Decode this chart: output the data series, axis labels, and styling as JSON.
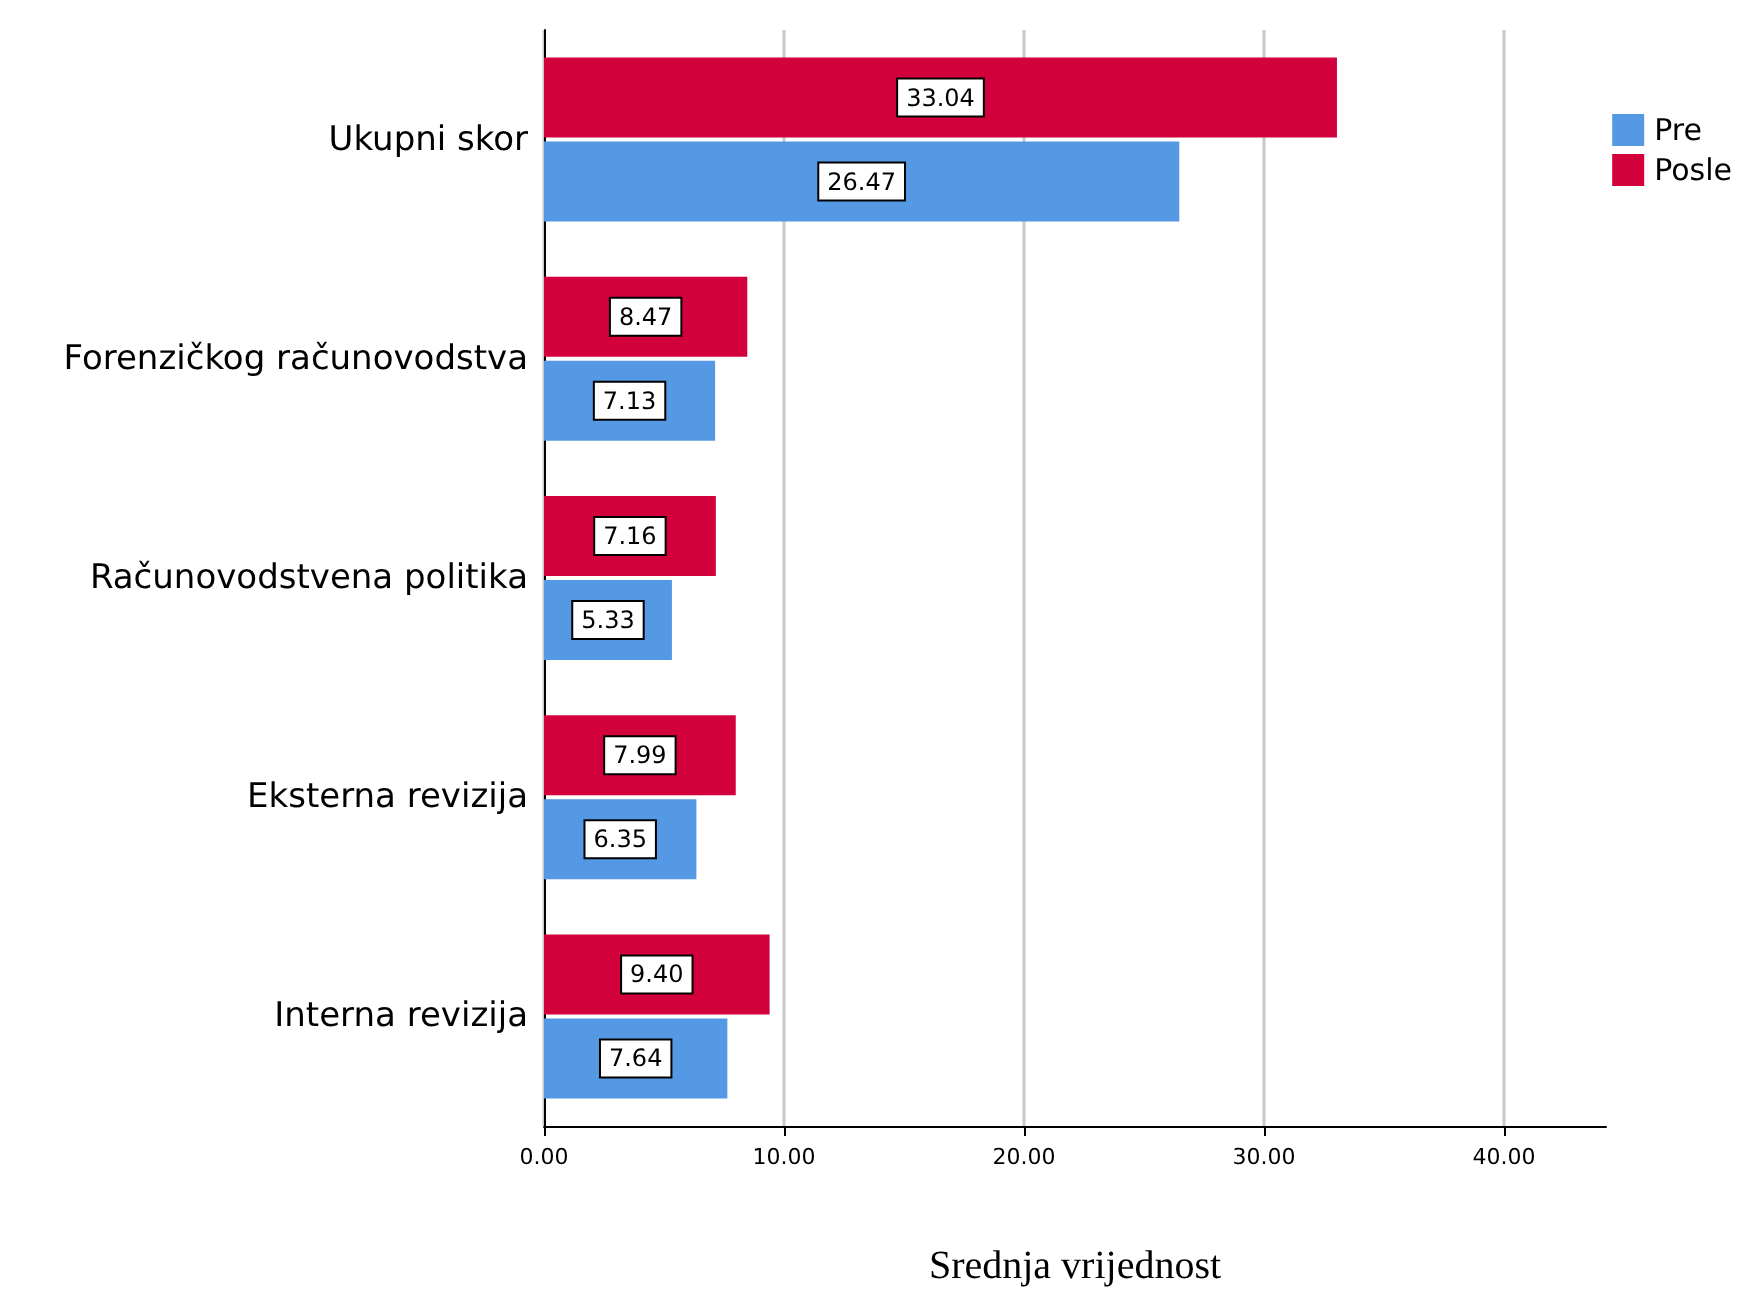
{
  "chart_data": {
    "type": "bar",
    "orientation": "horizontal",
    "xlabel": "Srednja vrijednost",
    "categories": [
      "Ukupni skor",
      "Forenzičkog računovodstva",
      "Računovodstvena politika",
      "Eksterna revizija",
      "Interna revizija"
    ],
    "series": [
      {
        "name": "Pre",
        "color": "#5599e5",
        "values": [
          26.47,
          7.13,
          5.33,
          6.35,
          7.64
        ]
      },
      {
        "name": "Posle",
        "color": "#d2003b",
        "values": [
          33.04,
          8.47,
          7.16,
          7.99,
          9.4
        ]
      }
    ],
    "value_labels": [
      [
        "26.47",
        "7.13",
        "5.33",
        "6.35",
        "7.64"
      ],
      [
        "33.04",
        "8.47",
        "7.16",
        "7.99",
        "9.40"
      ]
    ],
    "xlim": [
      0,
      44.25
    ],
    "xticks": [
      {
        "value": 0,
        "label": "0.00"
      },
      {
        "value": 10,
        "label": "10.00"
      },
      {
        "value": 20,
        "label": "20.00"
      },
      {
        "value": 30,
        "label": "30.00"
      },
      {
        "value": 40,
        "label": "40.00"
      }
    ],
    "grid": "x",
    "legend": "top right"
  }
}
